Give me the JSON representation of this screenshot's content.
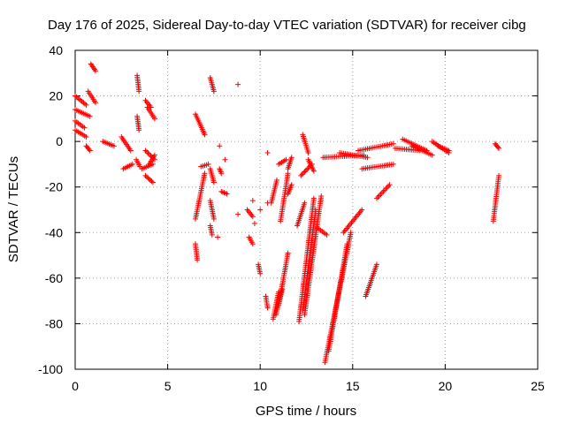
{
  "chart_data": {
    "type": "scatter",
    "title": "Day 176 of 2025, Sidereal Day-to-day VTEC variation (SDTVAR) for receiver cibg",
    "xlabel": "GPS time / hours",
    "ylabel": "SDTVAR / TECUs",
    "xlim": [
      0,
      25
    ],
    "ylim": [
      -100,
      40
    ],
    "xticks": [
      0,
      5,
      10,
      15,
      20,
      25
    ],
    "yticks": [
      -100,
      -80,
      -60,
      -40,
      -20,
      0,
      20,
      40
    ],
    "xtick_labels": [
      "0",
      "5",
      "10",
      "15",
      "20",
      "25"
    ],
    "ytick_labels": [
      "-100",
      "-80",
      "-60",
      "-40",
      "-20",
      "0",
      "20",
      "40"
    ],
    "grid": true,
    "marker": "+",
    "color": "#ff0000",
    "series": [
      {
        "name": "SDTVAR",
        "tracks": [
          {
            "x": [
              0.0,
              0.6
            ],
            "y": [
              20,
              16
            ]
          },
          {
            "x": [
              0.0,
              0.8
            ],
            "y": [
              14,
              11
            ]
          },
          {
            "x": [
              0.0,
              0.5
            ],
            "y": [
              9,
              6
            ]
          },
          {
            "x": [
              0.0,
              0.6
            ],
            "y": [
              5,
              2
            ]
          },
          {
            "x": [
              0.7,
              1.1
            ],
            "y": [
              22,
              17
            ]
          },
          {
            "x": [
              0.85,
              1.1
            ],
            "y": [
              34,
              31
            ]
          },
          {
            "x": [
              0.6,
              0.8
            ],
            "y": [
              -2,
              -4
            ]
          },
          {
            "x": [
              1.5,
              2.1
            ],
            "y": [
              0,
              -2
            ]
          },
          {
            "x": [
              2.5,
              3.0
            ],
            "y": [
              2,
              -4
            ]
          },
          {
            "x": [
              2.6,
              3.1
            ],
            "y": [
              -12,
              -10
            ]
          },
          {
            "x": [
              3.35,
              3.45
            ],
            "y": [
              29,
              22
            ]
          },
          {
            "x": [
              3.35,
              3.45
            ],
            "y": [
              11,
              5
            ]
          },
          {
            "x": [
              3.3,
              3.5
            ],
            "y": [
              -8,
              -11
            ]
          },
          {
            "x": [
              3.6,
              4.2
            ],
            "y": [
              -12,
              -10
            ]
          },
          {
            "x": [
              3.8,
              4.1
            ],
            "y": [
              18,
              15
            ]
          },
          {
            "x": [
              3.9,
              4.3
            ],
            "y": [
              15,
              10
            ]
          },
          {
            "x": [
              3.8,
              4.3
            ],
            "y": [
              -4,
              -8
            ]
          },
          {
            "x": [
              3.8,
              4.2
            ],
            "y": [
              -15,
              -18
            ]
          },
          {
            "x": [
              4.0,
              4.3
            ],
            "y": [
              -10,
              -6
            ]
          },
          {
            "x": [
              6.5,
              7.0
            ],
            "y": [
              12,
              3
            ]
          },
          {
            "x": [
              6.5,
              7.0
            ],
            "y": [
              -34,
              -14
            ]
          },
          {
            "x": [
              6.5,
              6.6
            ],
            "y": [
              -45,
              -52
            ]
          },
          {
            "x": [
              6.8,
              7.2
            ],
            "y": [
              -11,
              -10
            ]
          },
          {
            "x": [
              7.3,
              7.5
            ],
            "y": [
              28,
              22
            ]
          },
          {
            "x": [
              7.3,
              7.5
            ],
            "y": [
              -12,
              -18
            ]
          },
          {
            "x": [
              7.3,
              7.5
            ],
            "y": [
              -26,
              -34
            ]
          },
          {
            "x": [
              7.3,
              7.4
            ],
            "y": [
              -37,
              -41
            ]
          },
          {
            "x": [
              7.8,
              7.9
            ],
            "y": [
              -12,
              -14
            ]
          },
          {
            "x": [
              7.9,
              8.2
            ],
            "y": [
              -22,
              -23
            ]
          },
          {
            "x": [
              9.3,
              9.6
            ],
            "y": [
              -30,
              -33
            ]
          },
          {
            "x": [
              9.4,
              9.6
            ],
            "y": [
              -42,
              -45
            ]
          },
          {
            "x": [
              9.9,
              10.0
            ],
            "y": [
              -54,
              -58
            ]
          },
          {
            "x": [
              10.3,
              10.4
            ],
            "y": [
              -68,
              -73
            ]
          },
          {
            "x": [
              10.6,
              10.9
            ],
            "y": [
              -27,
              -17
            ]
          },
          {
            "x": [
              10.7,
              11.0
            ],
            "y": [
              -78,
              -66
            ]
          },
          {
            "x": [
              10.85,
              11.2
            ],
            "y": [
              -76,
              -65
            ]
          },
          {
            "x": [
              11.0,
              11.5
            ],
            "y": [
              -72,
              -49
            ]
          },
          {
            "x": [
              11.1,
              11.5
            ],
            "y": [
              -35,
              -14
            ]
          },
          {
            "x": [
              11.0,
              11.4
            ],
            "y": [
              -10,
              -8
            ]
          },
          {
            "x": [
              11.5,
              11.7
            ],
            "y": [
              -12,
              -7
            ]
          },
          {
            "x": [
              11.5,
              11.7
            ],
            "y": [
              -23,
              -19
            ]
          },
          {
            "x": [
              12.0,
              12.4
            ],
            "y": [
              -37,
              -27
            ]
          },
          {
            "x": [
              12.1,
              12.9
            ],
            "y": [
              -79,
              -25
            ]
          },
          {
            "x": [
              12.3,
              13.0
            ],
            "y": [
              -74,
              -30
            ]
          },
          {
            "x": [
              12.4,
              13.3
            ],
            "y": [
              -76,
              -24
            ]
          },
          {
            "x": [
              12.3,
              12.6
            ],
            "y": [
              3,
              -5
            ]
          },
          {
            "x": [
              12.6,
              12.9
            ],
            "y": [
              -8,
              -13
            ]
          },
          {
            "x": [
              12.2,
              12.8
            ],
            "y": [
              -15,
              -10
            ]
          },
          {
            "x": [
              13.1,
              13.6
            ],
            "y": [
              -38,
              -41
            ]
          },
          {
            "x": [
              13.5,
              14.9
            ],
            "y": [
              -97,
              -40
            ]
          },
          {
            "x": [
              13.7,
              14.7
            ],
            "y": [
              -92,
              -45
            ]
          },
          {
            "x": [
              14.5,
              15.5
            ],
            "y": [
              -40,
              -30
            ]
          },
          {
            "x": [
              13.4,
              15.6
            ],
            "y": [
              -7,
              -6
            ]
          },
          {
            "x": [
              14.3,
              15.8
            ],
            "y": [
              -5,
              -7
            ]
          },
          {
            "x": [
              15.3,
              17.2
            ],
            "y": [
              -4,
              -1
            ]
          },
          {
            "x": [
              15.5,
              17.2
            ],
            "y": [
              -12,
              -10
            ]
          },
          {
            "x": [
              15.7,
              16.3
            ],
            "y": [
              -68,
              -54
            ]
          },
          {
            "x": [
              16.3,
              17.0
            ],
            "y": [
              -25,
              -19
            ]
          },
          {
            "x": [
              17.3,
              18.6
            ],
            "y": [
              -3,
              -4
            ]
          },
          {
            "x": [
              17.7,
              19.0
            ],
            "y": [
              1,
              -4
            ]
          },
          {
            "x": [
              18.2,
              19.3
            ],
            "y": [
              -2,
              -6
            ]
          },
          {
            "x": [
              19.3,
              20.2
            ],
            "y": [
              0,
              -5
            ]
          },
          {
            "x": [
              19.6,
              20.2
            ],
            "y": [
              -2,
              -4
            ]
          },
          {
            "x": [
              22.6,
              22.9
            ],
            "y": [
              -35,
              -15
            ]
          },
          {
            "x": [
              22.7,
              22.9
            ],
            "y": [
              -1,
              -3
            ]
          }
        ],
        "points": [
          {
            "x": 8.8,
            "y": 25
          },
          {
            "x": 7.8,
            "y": -2
          },
          {
            "x": 8.1,
            "y": -8
          },
          {
            "x": 10.4,
            "y": -5
          },
          {
            "x": 7.7,
            "y": -42
          },
          {
            "x": 9.6,
            "y": -26
          },
          {
            "x": 8.8,
            "y": -32
          },
          {
            "x": 10.0,
            "y": -30
          },
          {
            "x": 10.4,
            "y": -27
          },
          {
            "x": 9.7,
            "y": -36
          }
        ]
      }
    ]
  }
}
